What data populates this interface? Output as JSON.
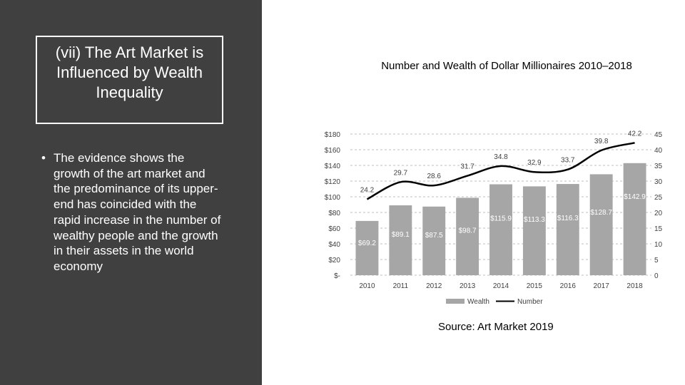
{
  "slide": {
    "title": "(vii) The Art Market is Influenced by Wealth Inequality",
    "bullet_symbol": "•",
    "bullet": "The evidence shows the growth of the art market and the predominance of its upper-end has coincided with the rapid increase in the number of wealthy people and the growth in their assets in the world economy",
    "source": "Source: Art Market 2019"
  },
  "chart_data": {
    "type": "bar",
    "title": "Number and Wealth of Dollar Millionaires 2010–2018",
    "categories": [
      "2010",
      "2011",
      "2012",
      "2013",
      "2014",
      "2015",
      "2016",
      "2017",
      "2018"
    ],
    "series": [
      {
        "name": "Wealth",
        "type": "bar",
        "axis": "left",
        "values": [
          69.2,
          89.1,
          87.5,
          98.7,
          115.9,
          113.3,
          116.3,
          128.7,
          142.9
        ],
        "labels": [
          "$69.2",
          "$89.1",
          "$87.5",
          "$98.7",
          "$115.9",
          "$113.3",
          "$116.3",
          "$128.7",
          "$142.9"
        ],
        "color": "#a6a6a6"
      },
      {
        "name": "Number",
        "type": "line",
        "axis": "right",
        "values": [
          24.2,
          29.7,
          28.6,
          31.7,
          34.8,
          32.9,
          33.7,
          39.8,
          42.2
        ],
        "labels": [
          "24.2",
          "29.7",
          "28.6",
          "31.7",
          "34.8",
          "32.9",
          "33.7",
          "39.8",
          "42.2"
        ],
        "color": "#000000"
      }
    ],
    "ylim": [
      0,
      180
    ],
    "y_ticks": [
      "$-",
      "$20",
      "$40",
      "$60",
      "$80",
      "$100",
      "$120",
      "$140",
      "$160",
      "$180"
    ],
    "y2lim": [
      0,
      45
    ],
    "y2_ticks": [
      "0",
      "5",
      "10",
      "15",
      "20",
      "25",
      "30",
      "35",
      "40",
      "45"
    ],
    "grid": "dashed horizontal",
    "legend": "bottom"
  }
}
